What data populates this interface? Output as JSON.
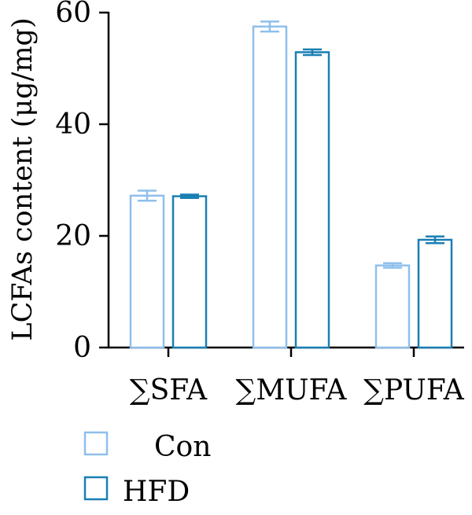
{
  "chart_data": {
    "type": "bar",
    "categories": [
      "∑SFA",
      "∑MUFA",
      "∑PUFA"
    ],
    "series": [
      {
        "name": "Con",
        "values": [
          27.2,
          57.5,
          14.7
        ],
        "errors": [
          0.9,
          0.9,
          0.4
        ],
        "color": "#8fbfec"
      },
      {
        "name": "HFD",
        "values": [
          27.1,
          52.9,
          19.3
        ],
        "errors": [
          0.3,
          0.5,
          0.6
        ],
        "color": "#1a7fb3"
      }
    ],
    "title": "",
    "xlabel": "",
    "ylabel": "LCFAs content (μg/mg)",
    "ylim": [
      0,
      60
    ],
    "yticks": [
      0,
      20,
      40,
      60
    ],
    "grid": false,
    "legend_position": "bottom-left"
  }
}
